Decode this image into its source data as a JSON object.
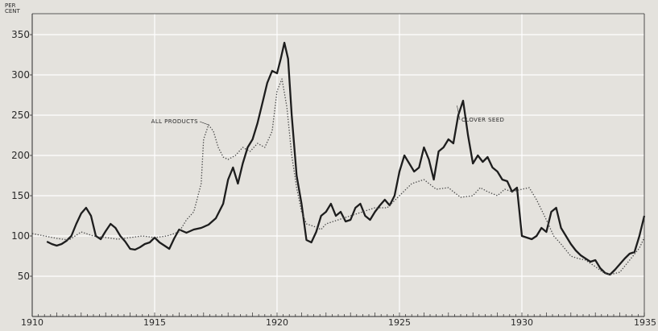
{
  "chart_data": {
    "type": "line",
    "title": "",
    "xlabel": "",
    "ylabel": "PER CENT",
    "ylabel_lines": [
      "PER",
      "CENT"
    ],
    "xlim": [
      1910,
      1935
    ],
    "ylim": [
      0,
      360
    ],
    "x_ticks": [
      1910,
      1915,
      1920,
      1925,
      1930,
      1935
    ],
    "x_tick_labels": [
      "1910",
      "1915",
      "1920",
      "1925",
      "1930",
      "1935"
    ],
    "y_ticks": [
      50,
      100,
      150,
      200,
      250,
      300,
      350
    ],
    "y_tick_labels": [
      "50",
      "100",
      "150",
      "200",
      "250",
      "300",
      "350"
    ],
    "grid": true,
    "colors": {
      "background": "#e4e2dd",
      "ink": "#2a2a2a",
      "grid": "#ffffff"
    },
    "series": [
      {
        "name": "CLOVER SEED",
        "style": "solid-thick",
        "x": [
          1910.6,
          1910.8,
          1911.0,
          1911.2,
          1911.4,
          1911.6,
          1911.8,
          1912.0,
          1912.2,
          1912.4,
          1912.6,
          1912.8,
          1913.0,
          1913.2,
          1913.4,
          1913.6,
          1913.8,
          1914.0,
          1914.2,
          1914.4,
          1914.6,
          1914.8,
          1915.0,
          1915.2,
          1915.4,
          1915.6,
          1915.8,
          1916.0,
          1916.3,
          1916.6,
          1916.9,
          1917.2,
          1917.5,
          1917.8,
          1918.0,
          1918.2,
          1918.4,
          1918.6,
          1918.8,
          1919.0,
          1919.2,
          1919.4,
          1919.6,
          1919.8,
          1920.0,
          1920.15,
          1920.3,
          1920.45,
          1920.6,
          1920.8,
          1921.0,
          1921.2,
          1921.4,
          1921.6,
          1921.8,
          1922.0,
          1922.2,
          1922.4,
          1922.6,
          1922.8,
          1923.0,
          1923.2,
          1923.4,
          1923.6,
          1923.8,
          1924.0,
          1924.2,
          1924.4,
          1924.6,
          1924.8,
          1925.0,
          1925.2,
          1925.4,
          1925.6,
          1925.8,
          1926.0,
          1926.2,
          1926.4,
          1926.6,
          1926.8,
          1927.0,
          1927.2,
          1927.4,
          1927.6,
          1927.8,
          1928.0,
          1928.2,
          1928.4,
          1928.6,
          1928.8,
          1929.0,
          1929.2,
          1929.4,
          1929.6,
          1929.8,
          1930.0,
          1930.2,
          1930.4,
          1930.6,
          1930.8,
          1931.0,
          1931.2,
          1931.4,
          1931.6,
          1931.8,
          1932.0,
          1932.2,
          1932.4,
          1932.6,
          1932.8,
          1933.0,
          1933.2,
          1933.4,
          1933.6,
          1933.8,
          1934.0,
          1934.2,
          1934.4,
          1934.6,
          1934.8,
          1935.0
        ],
        "values": [
          93,
          90,
          88,
          90,
          94,
          100,
          115,
          128,
          135,
          125,
          100,
          96,
          106,
          115,
          110,
          100,
          93,
          84,
          83,
          86,
          90,
          92,
          98,
          92,
          88,
          84,
          97,
          108,
          104,
          108,
          110,
          114,
          122,
          140,
          170,
          185,
          165,
          190,
          210,
          220,
          240,
          265,
          290,
          305,
          302,
          320,
          340,
          320,
          250,
          175,
          140,
          95,
          92,
          105,
          125,
          130,
          140,
          125,
          130,
          118,
          120,
          135,
          140,
          125,
          120,
          130,
          138,
          145,
          138,
          150,
          180,
          200,
          190,
          180,
          185,
          210,
          195,
          170,
          205,
          210,
          220,
          215,
          250,
          268,
          225,
          190,
          200,
          192,
          198,
          185,
          180,
          170,
          168,
          155,
          160,
          100,
          98,
          96,
          100,
          110,
          105,
          130,
          135,
          110,
          100,
          90,
          82,
          76,
          72,
          68,
          70,
          60,
          54,
          52,
          58,
          65,
          72,
          78,
          80,
          100,
          125
        ]
      },
      {
        "name": "ALL PRODUCTS",
        "style": "dotted",
        "x": [
          1910.0,
          1910.5,
          1911.0,
          1911.5,
          1912.0,
          1912.5,
          1913.0,
          1913.5,
          1914.0,
          1914.5,
          1915.0,
          1915.5,
          1916.0,
          1916.3,
          1916.6,
          1916.9,
          1917.0,
          1917.2,
          1917.4,
          1917.6,
          1917.8,
          1918.0,
          1918.3,
          1918.6,
          1918.9,
          1919.2,
          1919.5,
          1919.8,
          1920.0,
          1920.2,
          1920.4,
          1920.6,
          1920.8,
          1921.0,
          1921.2,
          1921.5,
          1921.8,
          1922.0,
          1922.5,
          1923.0,
          1923.5,
          1924.0,
          1924.5,
          1925.0,
          1925.5,
          1926.0,
          1926.5,
          1927.0,
          1927.2,
          1927.5,
          1928.0,
          1928.3,
          1928.6,
          1929.0,
          1929.3,
          1929.6,
          1930.0,
          1930.3,
          1930.6,
          1931.0,
          1931.3,
          1931.6,
          1932.0,
          1932.3,
          1932.6,
          1933.0,
          1933.3,
          1933.6,
          1934.0,
          1934.4,
          1934.8,
          1935.0
        ],
        "values": [
          103,
          100,
          97,
          95,
          105,
          100,
          98,
          96,
          98,
          100,
          98,
          100,
          105,
          120,
          130,
          165,
          220,
          238,
          230,
          210,
          198,
          195,
          200,
          210,
          205,
          215,
          210,
          230,
          280,
          295,
          260,
          200,
          160,
          130,
          115,
          112,
          108,
          115,
          120,
          125,
          130,
          135,
          135,
          150,
          165,
          170,
          158,
          160,
          155,
          148,
          150,
          160,
          155,
          150,
          158,
          155,
          158,
          160,
          145,
          120,
          100,
          90,
          75,
          72,
          70,
          62,
          55,
          52,
          55,
          70,
          85,
          98
        ]
      }
    ],
    "annotations": [
      {
        "text": "ALL PRODUCTS",
        "target_series": "ALL PRODUCTS"
      },
      {
        "text": "CLOVER SEED",
        "target_series": "CLOVER SEED"
      }
    ]
  }
}
